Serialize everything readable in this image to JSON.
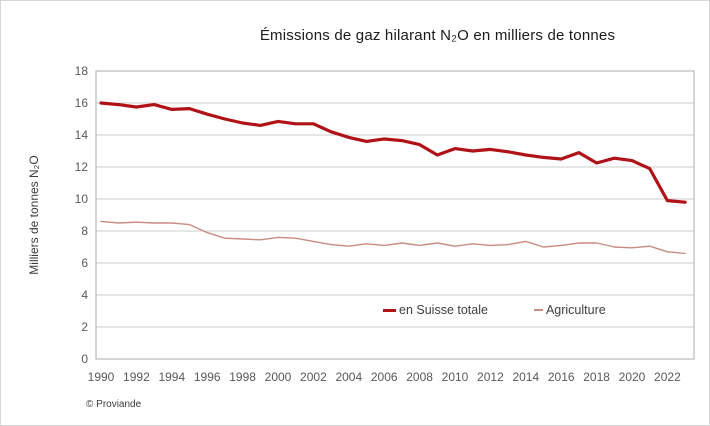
{
  "chart_data": {
    "type": "line",
    "title": "Émissions de gaz hilarant N₂O en milliers de tonnes",
    "xlabel": "",
    "ylabel": "Milliers de tonnes N₂O",
    "ylim": [
      0,
      18
    ],
    "ytick_step": 2,
    "grid": "horizontal",
    "legend_position": "inside-bottom",
    "x": [
      1990,
      1991,
      1992,
      1993,
      1994,
      1995,
      1996,
      1997,
      1998,
      1999,
      2000,
      2001,
      2002,
      2003,
      2004,
      2005,
      2006,
      2007,
      2008,
      2009,
      2010,
      2011,
      2012,
      2013,
      2014,
      2015,
      2016,
      2017,
      2018,
      2019,
      2020,
      2021,
      2022,
      2023
    ],
    "xtick_labels": [
      "1990",
      "1992",
      "1994",
      "1996",
      "1998",
      "2000",
      "2002",
      "2004",
      "2006",
      "2008",
      "2010",
      "2012",
      "2014",
      "2016",
      "2018",
      "2020",
      "2022"
    ],
    "series": [
      {
        "name": "en Suisse totale",
        "color": "#b01217",
        "stroke_width": 3.2,
        "values": [
          16.0,
          15.9,
          15.75,
          15.9,
          15.6,
          15.65,
          15.3,
          15.0,
          14.75,
          14.6,
          14.85,
          14.7,
          14.7,
          14.2,
          13.85,
          13.6,
          13.75,
          13.65,
          13.4,
          12.75,
          13.15,
          13.0,
          13.1,
          12.95,
          12.75,
          12.6,
          12.5,
          12.9,
          12.25,
          12.55,
          12.4,
          11.9,
          9.9,
          9.8
        ]
      },
      {
        "name": "Agriculture",
        "color": "#c98c82",
        "stroke_width": 1.4,
        "values": [
          8.6,
          8.5,
          8.55,
          8.5,
          8.5,
          8.4,
          7.9,
          7.55,
          7.5,
          7.45,
          7.6,
          7.55,
          7.35,
          7.15,
          7.05,
          7.2,
          7.1,
          7.25,
          7.1,
          7.25,
          7.05,
          7.2,
          7.1,
          7.15,
          7.35,
          7.0,
          7.1,
          7.25,
          7.25,
          7.0,
          6.95,
          7.05,
          6.7,
          6.6
        ]
      }
    ]
  },
  "footer": {
    "copyright": "© Proviande"
  },
  "colors": {
    "gridline": "#cccccc",
    "plot_border": "#ababab",
    "tick_label": "#595959",
    "title_text": "#1a1a1a",
    "legend_text": "#3f3f3f",
    "frame_border": "#d6d6d6"
  }
}
